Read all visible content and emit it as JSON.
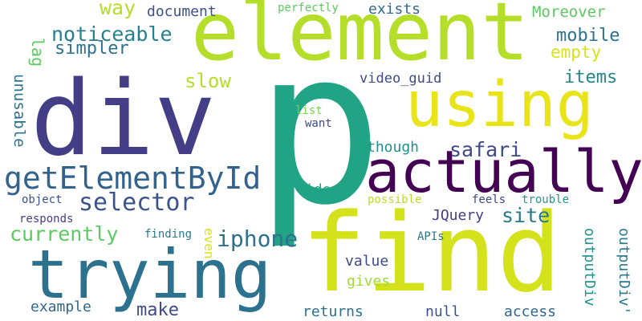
{
  "words": [
    {
      "text": "p",
      "color": "#21a385"
    },
    {
      "text": "div",
      "color": "#433e85"
    },
    {
      "text": "element",
      "color": "#b5de2b"
    },
    {
      "text": "find",
      "color": "#d3e21b"
    },
    {
      "text": "using",
      "color": "#e8e419"
    },
    {
      "text": "actually",
      "color": "#440154"
    },
    {
      "text": "trying",
      "color": "#2c728e"
    },
    {
      "text": "getElementById",
      "color": "#33638d"
    },
    {
      "text": "selector",
      "color": "#3b528b"
    },
    {
      "text": "iphone",
      "color": "#2c728e"
    },
    {
      "text": "currently",
      "color": "#5ec962"
    },
    {
      "text": "safari",
      "color": "#3e4989"
    },
    {
      "text": "site",
      "color": "#2a788e"
    },
    {
      "text": "noticeable",
      "color": "#27808e"
    },
    {
      "text": "simpler",
      "color": "#2c728e"
    },
    {
      "text": "slow",
      "color": "#b5de2b"
    },
    {
      "text": "items",
      "color": "#25858e"
    },
    {
      "text": "mobile",
      "color": "#2c728e"
    },
    {
      "text": "empty",
      "color": "#d8e219"
    },
    {
      "text": "way",
      "color": "#b5de2b"
    },
    {
      "text": "document",
      "color": "#3b528b"
    },
    {
      "text": "Moreover",
      "color": "#5ec962"
    },
    {
      "text": "exists",
      "color": "#31688e"
    },
    {
      "text": "perfectly",
      "color": "#5ec962"
    },
    {
      "text": "video_guid",
      "color": "#3e4989"
    },
    {
      "text": "though",
      "color": "#21918c"
    },
    {
      "text": "idea",
      "color": "#1fa287"
    },
    {
      "text": "unusable",
      "color": "#2c728e"
    },
    {
      "text": "lag",
      "color": "#5ec962"
    },
    {
      "text": "list",
      "color": "#7ad151"
    },
    {
      "text": "want",
      "color": "#3e4989"
    },
    {
      "text": "possible",
      "color": "#b5de2b"
    },
    {
      "text": "feels",
      "color": "#3e4989"
    },
    {
      "text": "trouble",
      "color": "#1f998a"
    },
    {
      "text": "JQuery",
      "color": "#433e85"
    },
    {
      "text": "object",
      "color": "#3b528b"
    },
    {
      "text": "responds",
      "color": "#433e85"
    },
    {
      "text": "finding",
      "color": "#2a788e"
    },
    {
      "text": "even",
      "color": "#d8e219"
    },
    {
      "text": "APIs",
      "color": "#2a788e"
    },
    {
      "text": "outputDiv",
      "color": "#21918c"
    },
    {
      "text": "outputDiv'",
      "color": "#2a788e"
    },
    {
      "text": "value",
      "color": "#3e4989"
    },
    {
      "text": "gives",
      "color": "#a0da39"
    },
    {
      "text": "make",
      "color": "#3e4989"
    },
    {
      "text": "example",
      "color": "#31688e"
    },
    {
      "text": "returns",
      "color": "#2c728e"
    },
    {
      "text": "null",
      "color": "#3b528b"
    },
    {
      "text": "access",
      "color": "#31688e"
    }
  ]
}
